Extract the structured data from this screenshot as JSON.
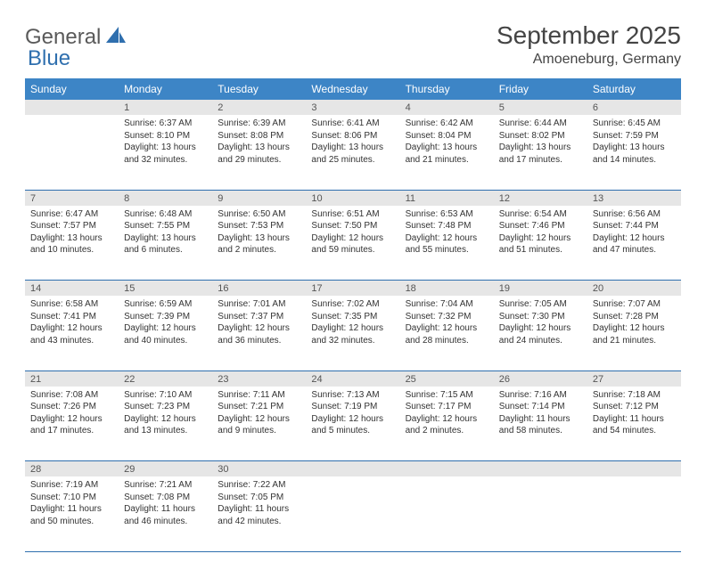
{
  "logo": {
    "general": "General",
    "blue": "Blue"
  },
  "title": "September 2025",
  "location": "Amoeneburg, Germany",
  "colors": {
    "header_bg": "#3d85c6",
    "header_text": "#ffffff",
    "daynum_bg": "#e6e6e6",
    "rule": "#2f6fae",
    "logo_gray": "#5a5a5a",
    "logo_blue": "#2f6fae"
  },
  "days": [
    "Sunday",
    "Monday",
    "Tuesday",
    "Wednesday",
    "Thursday",
    "Friday",
    "Saturday"
  ],
  "weeks": [
    {
      "nums": [
        "",
        "1",
        "2",
        "3",
        "4",
        "5",
        "6"
      ],
      "cells": [
        null,
        {
          "sunrise": "Sunrise: 6:37 AM",
          "sunset": "Sunset: 8:10 PM",
          "daylight": "Daylight: 13 hours and 32 minutes."
        },
        {
          "sunrise": "Sunrise: 6:39 AM",
          "sunset": "Sunset: 8:08 PM",
          "daylight": "Daylight: 13 hours and 29 minutes."
        },
        {
          "sunrise": "Sunrise: 6:41 AM",
          "sunset": "Sunset: 8:06 PM",
          "daylight": "Daylight: 13 hours and 25 minutes."
        },
        {
          "sunrise": "Sunrise: 6:42 AM",
          "sunset": "Sunset: 8:04 PM",
          "daylight": "Daylight: 13 hours and 21 minutes."
        },
        {
          "sunrise": "Sunrise: 6:44 AM",
          "sunset": "Sunset: 8:02 PM",
          "daylight": "Daylight: 13 hours and 17 minutes."
        },
        {
          "sunrise": "Sunrise: 6:45 AM",
          "sunset": "Sunset: 7:59 PM",
          "daylight": "Daylight: 13 hours and 14 minutes."
        }
      ]
    },
    {
      "nums": [
        "7",
        "8",
        "9",
        "10",
        "11",
        "12",
        "13"
      ],
      "cells": [
        {
          "sunrise": "Sunrise: 6:47 AM",
          "sunset": "Sunset: 7:57 PM",
          "daylight": "Daylight: 13 hours and 10 minutes."
        },
        {
          "sunrise": "Sunrise: 6:48 AM",
          "sunset": "Sunset: 7:55 PM",
          "daylight": "Daylight: 13 hours and 6 minutes."
        },
        {
          "sunrise": "Sunrise: 6:50 AM",
          "sunset": "Sunset: 7:53 PM",
          "daylight": "Daylight: 13 hours and 2 minutes."
        },
        {
          "sunrise": "Sunrise: 6:51 AM",
          "sunset": "Sunset: 7:50 PM",
          "daylight": "Daylight: 12 hours and 59 minutes."
        },
        {
          "sunrise": "Sunrise: 6:53 AM",
          "sunset": "Sunset: 7:48 PM",
          "daylight": "Daylight: 12 hours and 55 minutes."
        },
        {
          "sunrise": "Sunrise: 6:54 AM",
          "sunset": "Sunset: 7:46 PM",
          "daylight": "Daylight: 12 hours and 51 minutes."
        },
        {
          "sunrise": "Sunrise: 6:56 AM",
          "sunset": "Sunset: 7:44 PM",
          "daylight": "Daylight: 12 hours and 47 minutes."
        }
      ]
    },
    {
      "nums": [
        "14",
        "15",
        "16",
        "17",
        "18",
        "19",
        "20"
      ],
      "cells": [
        {
          "sunrise": "Sunrise: 6:58 AM",
          "sunset": "Sunset: 7:41 PM",
          "daylight": "Daylight: 12 hours and 43 minutes."
        },
        {
          "sunrise": "Sunrise: 6:59 AM",
          "sunset": "Sunset: 7:39 PM",
          "daylight": "Daylight: 12 hours and 40 minutes."
        },
        {
          "sunrise": "Sunrise: 7:01 AM",
          "sunset": "Sunset: 7:37 PM",
          "daylight": "Daylight: 12 hours and 36 minutes."
        },
        {
          "sunrise": "Sunrise: 7:02 AM",
          "sunset": "Sunset: 7:35 PM",
          "daylight": "Daylight: 12 hours and 32 minutes."
        },
        {
          "sunrise": "Sunrise: 7:04 AM",
          "sunset": "Sunset: 7:32 PM",
          "daylight": "Daylight: 12 hours and 28 minutes."
        },
        {
          "sunrise": "Sunrise: 7:05 AM",
          "sunset": "Sunset: 7:30 PM",
          "daylight": "Daylight: 12 hours and 24 minutes."
        },
        {
          "sunrise": "Sunrise: 7:07 AM",
          "sunset": "Sunset: 7:28 PM",
          "daylight": "Daylight: 12 hours and 21 minutes."
        }
      ]
    },
    {
      "nums": [
        "21",
        "22",
        "23",
        "24",
        "25",
        "26",
        "27"
      ],
      "cells": [
        {
          "sunrise": "Sunrise: 7:08 AM",
          "sunset": "Sunset: 7:26 PM",
          "daylight": "Daylight: 12 hours and 17 minutes."
        },
        {
          "sunrise": "Sunrise: 7:10 AM",
          "sunset": "Sunset: 7:23 PM",
          "daylight": "Daylight: 12 hours and 13 minutes."
        },
        {
          "sunrise": "Sunrise: 7:11 AM",
          "sunset": "Sunset: 7:21 PM",
          "daylight": "Daylight: 12 hours and 9 minutes."
        },
        {
          "sunrise": "Sunrise: 7:13 AM",
          "sunset": "Sunset: 7:19 PM",
          "daylight": "Daylight: 12 hours and 5 minutes."
        },
        {
          "sunrise": "Sunrise: 7:15 AM",
          "sunset": "Sunset: 7:17 PM",
          "daylight": "Daylight: 12 hours and 2 minutes."
        },
        {
          "sunrise": "Sunrise: 7:16 AM",
          "sunset": "Sunset: 7:14 PM",
          "daylight": "Daylight: 11 hours and 58 minutes."
        },
        {
          "sunrise": "Sunrise: 7:18 AM",
          "sunset": "Sunset: 7:12 PM",
          "daylight": "Daylight: 11 hours and 54 minutes."
        }
      ]
    },
    {
      "nums": [
        "28",
        "29",
        "30",
        "",
        "",
        "",
        ""
      ],
      "cells": [
        {
          "sunrise": "Sunrise: 7:19 AM",
          "sunset": "Sunset: 7:10 PM",
          "daylight": "Daylight: 11 hours and 50 minutes."
        },
        {
          "sunrise": "Sunrise: 7:21 AM",
          "sunset": "Sunset: 7:08 PM",
          "daylight": "Daylight: 11 hours and 46 minutes."
        },
        {
          "sunrise": "Sunrise: 7:22 AM",
          "sunset": "Sunset: 7:05 PM",
          "daylight": "Daylight: 11 hours and 42 minutes."
        },
        null,
        null,
        null,
        null
      ]
    }
  ]
}
